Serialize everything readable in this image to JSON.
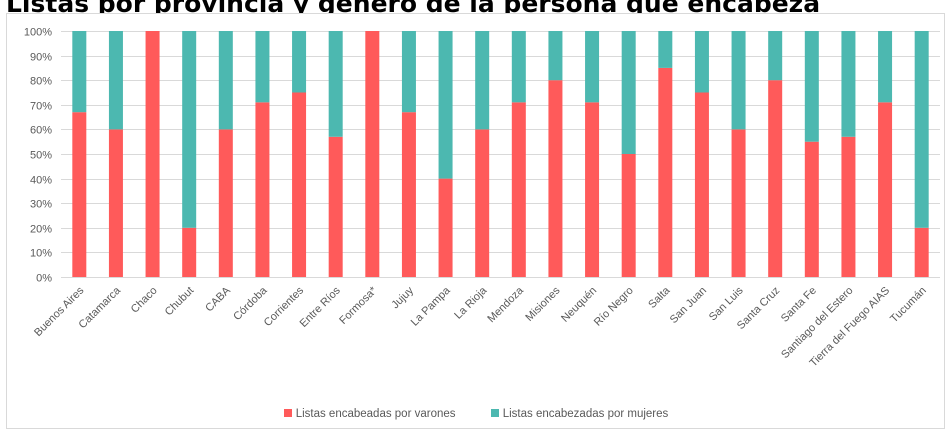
{
  "title": "Listas por provincia y género de la persona que encabeza",
  "colors": {
    "varones": "#ff5a5a",
    "mujeres": "#4cb8b0",
    "grid": "#d9d9d9",
    "text": "#595959"
  },
  "chart_data": {
    "type": "bar",
    "stacked": true,
    "percent": true,
    "title": "",
    "xlabel": "",
    "ylabel": "",
    "ylim": [
      0,
      100
    ],
    "yticks": [
      "0%",
      "10%",
      "20%",
      "30%",
      "40%",
      "50%",
      "60%",
      "70%",
      "80%",
      "90%",
      "100%"
    ],
    "grid": true,
    "legend_position": "bottom",
    "categories": [
      "Buenos Aires",
      "Catamarca",
      "Chaco",
      "Chubut",
      "CABA",
      "Córdoba",
      "Corrientes",
      "Entre Ríos",
      "Formosa*",
      "Jujuy",
      "La Pampa",
      "La Rioja",
      "Mendoza",
      "Misiones",
      "Neuquén",
      "Río Negro",
      "Salta",
      "San Juan",
      "San Luis",
      "Santa Cruz",
      "Santa Fe",
      "Santiago del Estero",
      "Tierra del Fuego AIAS",
      "Tucumán"
    ],
    "series": [
      {
        "name": "Listas encabeadas por varones",
        "color": "#ff5a5a",
        "values": [
          67,
          60,
          100,
          20,
          60,
          71,
          75,
          57,
          100,
          67,
          40,
          60,
          71,
          80,
          71,
          50,
          85,
          75,
          60,
          80,
          55,
          57,
          71,
          20
        ]
      },
      {
        "name": "Listas encabezadas por mujeres",
        "color": "#4cb8b0",
        "values": [
          33,
          40,
          0,
          80,
          40,
          29,
          25,
          43,
          0,
          33,
          60,
          40,
          29,
          20,
          29,
          50,
          15,
          25,
          40,
          20,
          45,
          43,
          29,
          80
        ]
      }
    ]
  }
}
